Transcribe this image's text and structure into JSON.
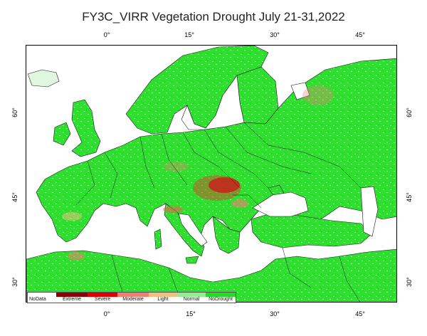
{
  "title": "FY3C_VIRR Vegetation Drought July 21-31,2022",
  "axis": {
    "lon_top": [
      "0°",
      "15°",
      "30°",
      "45°"
    ],
    "lon_bottom": [
      "0°",
      "15°",
      "30°",
      "45°"
    ],
    "lat_left": [
      "60°",
      "45°",
      "30°"
    ],
    "lat_right": [
      "60°",
      "45°",
      "30°"
    ]
  },
  "legend": [
    {
      "label": "NoData",
      "color": "#ffffff"
    },
    {
      "label": "Extreme",
      "color": "#8b0000"
    },
    {
      "label": "Severe",
      "color": "#e00000"
    },
    {
      "label": "Moderate",
      "color": "#f08070"
    },
    {
      "label": "Light",
      "color": "#f0c080"
    },
    {
      "label": "Normal",
      "color": "#90ee90"
    },
    {
      "label": "NoDrought",
      "color": "#22dd22"
    }
  ],
  "colors": {
    "land": "#2ee02e",
    "land_light": "#7ff07f",
    "water": "#ffffff",
    "border": "#1a1a1a"
  }
}
